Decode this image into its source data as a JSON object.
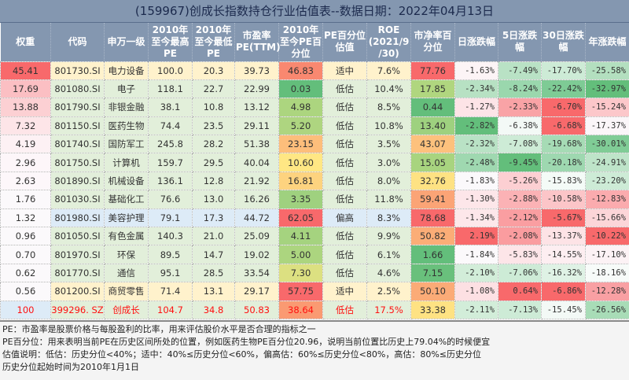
{
  "title": "(159967)创成长指数持仓行业估值表--数据日期：2022年04月13日",
  "headers": [
    "权重",
    "代码",
    "申万一级",
    "2010年\n至今最高\nPE",
    "2010年\n至今最低\nPE",
    "市盈率\nPE(TTM)",
    "2010年\n至今PE百\n分位",
    "PE百分位\n估值",
    "ROE\n(2021/9\n/30)",
    "市净率百\n分位",
    "日涨跌幅",
    "5日涨跌\n幅",
    "30日涨跌\n幅",
    "年涨跌幅"
  ],
  "category_colors": {
    "适中": "#fff2cc",
    "低估": "#e2efda",
    "偏高": "#ddebf7"
  },
  "rows": [
    {
      "weight": "45.41",
      "wc": "#f8696b",
      "code": "801730.SI",
      "name": "电力设备",
      "high": "100.0",
      "low": "20.3",
      "pe": "39.73",
      "pep": "46.83",
      "pepc": "#f98870",
      "val": "适中",
      "roe": "7.6%",
      "pb": "77.76",
      "pbc": "#f8696b",
      "d": "-1.63%",
      "dc": "#fcf4f6",
      "d5": "-7.49%",
      "d5c": "#b9e2c5",
      "d30": "-17.70%",
      "d30c": "#cdebd6",
      "y": "-25.58%",
      "yc": "#b3dfbf"
    },
    {
      "weight": "17.69",
      "wc": "#fbbfc3",
      "code": "801080.SI",
      "name": "电子",
      "high": "118.1",
      "low": "22.7",
      "pe": "22.99",
      "pep": "0.03",
      "pepc": "#63be7b",
      "val": "低估",
      "roe": "10.4%",
      "pb": "17.85",
      "pbc": "#b0d67f",
      "d": "-2.34%",
      "dc": "#b7e1c3",
      "d5": "-8.24%",
      "d5c": "#9ad7ad",
      "d30": "-22.42%",
      "d30c": "#7ecb95",
      "y": "-32.97%",
      "yc": "#63be7b"
    },
    {
      "weight": "13.88",
      "wc": "#fcd0d3",
      "code": "801790.SI",
      "name": "非银金融",
      "high": "38.1",
      "low": "10.8",
      "pe": "13.12",
      "pep": "4.98",
      "pepc": "#acd57f",
      "val": "低估",
      "roe": "8.5%",
      "pb": "0.44",
      "pbc": "#63be7b",
      "d": "-1.27%",
      "dc": "#fde4e7",
      "d5": "-2.33%",
      "d5c": "#f9a3a6",
      "d30": "-6.70%",
      "d30c": "#f8696b",
      "y": "-15.24%",
      "yc": "#fcc7ca"
    },
    {
      "weight": "7.32",
      "wc": "#fde5e8",
      "code": "801150.SI",
      "name": "医药生物",
      "high": "74.4",
      "low": "23.5",
      "pe": "29.11",
      "pep": "5.20",
      "pepc": "#aed580",
      "val": "低估",
      "roe": "10.8%",
      "pb": "13.40",
      "pbc": "#9ed17f",
      "d": "-2.82%",
      "dc": "#63be7b",
      "d5": "-6.38%",
      "d5c": "#f3f9f6",
      "d30": "-6.68%",
      "d30c": "#f8696b",
      "y": "-17.37%",
      "yc": "#fbf6f9"
    },
    {
      "weight": "4.19",
      "wc": "#fdf1f4",
      "code": "801740.SI",
      "name": "国防军工",
      "high": "245.8",
      "low": "28.2",
      "pe": "51.38",
      "pep": "23.15",
      "pepc": "#fdbe7b",
      "val": "低估",
      "roe": "3.5%",
      "pb": "43.07",
      "pbc": "#fdc17d",
      "d": "-2.32%",
      "dc": "#b9e2c5",
      "d5": "-7.08%",
      "d5c": "#cdebd6",
      "d30": "-19.68%",
      "d30c": "#a6dbb5",
      "y": "-30.01%",
      "yc": "#80cc96"
    },
    {
      "weight": "2.96",
      "wc": "#fdf6f9",
      "code": "801750.SI",
      "name": "计算机",
      "high": "159.7",
      "low": "29.5",
      "pe": "40.04",
      "pep": "10.60",
      "pepc": "#ffe784",
      "val": "低估",
      "roe": "3.0%",
      "pb": "15.05",
      "pbc": "#a8d47f",
      "d": "-2.48%",
      "dc": "#9fd8b0",
      "d5": "-9.45%",
      "d5c": "#63be7b",
      "d30": "-20.18%",
      "d30c": "#9ed8b0",
      "y": "-24.91%",
      "yc": "#bee4c9"
    },
    {
      "weight": "2.63",
      "wc": "#fdf7fa",
      "code": "801890.SI",
      "name": "机械设备",
      "high": "136.1",
      "low": "12.8",
      "pe": "21.92",
      "pep": "16.81",
      "pepc": "#fdd37f",
      "val": "低估",
      "roe": "8.0%",
      "pb": "32.76",
      "pbc": "#fee283",
      "d": "-1.83%",
      "dc": "#fbf9fb",
      "d5": "-5.26%",
      "d5c": "#fccfd2",
      "d30": "-15.83%",
      "d30c": "#f4fbf7",
      "y": "-23.20%",
      "yc": "#cdebd6"
    },
    {
      "weight": "1.76",
      "wc": "#fbf9fb",
      "code": "801030.SI",
      "name": "基础化工",
      "high": "76.6",
      "low": "13.0",
      "pe": "16.26",
      "pep": "3.35",
      "pepc": "#9fd17f",
      "val": "低估",
      "roe": "11.8%",
      "pb": "59.41",
      "pbc": "#fba476",
      "d": "-1.30%",
      "dc": "#fde6e9",
      "d5": "-2.88%",
      "d5c": "#fbb2b5",
      "d30": "-10.58%",
      "d30c": "#fcc5c8",
      "y": "-12.83%",
      "yc": "#fbabae"
    },
    {
      "weight": "1.32",
      "wc": "#fbf9fb",
      "code": "801980.SI",
      "name": "美容护理",
      "high": "79.1",
      "low": "17.3",
      "pe": "44.72",
      "pep": "62.05",
      "pepc": "#f8696b",
      "val": "偏高",
      "roe": "8.3%",
      "pb": "78.68",
      "pbc": "#f8696b",
      "d": "-1.34%",
      "dc": "#fde7ea",
      "d5": "-2.12%",
      "d5c": "#fa9ea1",
      "d30": "-5.67%",
      "d30c": "#f8696b",
      "y": "-15.66%",
      "yc": "#fcd5d8"
    },
    {
      "weight": "0.96",
      "wc": "#fbf9fb",
      "code": "801050.SI",
      "name": "有色金属",
      "high": "140.3",
      "low": "21.0",
      "pe": "25.09",
      "pep": "4.11",
      "pepc": "#a5d37f",
      "val": "低估",
      "roe": "9.9%",
      "pb": "50.82",
      "pbc": "#fbad77",
      "d": "2.19%",
      "dc": "#f8696b",
      "d5": "-2.08%",
      "d5c": "#fa9c9f",
      "d30": "-13.37%",
      "d30c": "#fde3e6",
      "y": "-10.22%",
      "yc": "#f8696b"
    },
    {
      "weight": "0.70",
      "wc": "#fbf9fb",
      "code": "801970.SI",
      "name": "环保",
      "high": "89.5",
      "low": "14.7",
      "pe": "19.02",
      "pep": "5.00",
      "pepc": "#acd57f",
      "val": "低估",
      "roe": "6.1%",
      "pb": "1.66",
      "pbc": "#63be7b",
      "d": "-1.84%",
      "dc": "#fbf9fb",
      "d5": "-5.83%",
      "d5c": "#fde5e8",
      "d30": "-14.55%",
      "d30c": "#fdeef1",
      "y": "-17.10%",
      "yc": "#fcf2f5"
    },
    {
      "weight": "0.62",
      "wc": "#fbf9fb",
      "code": "801770.SI",
      "name": "通信",
      "high": "95.1",
      "low": "28.5",
      "pe": "33.54",
      "pep": "7.30",
      "pepc": "#dce081",
      "val": "低估",
      "roe": "4.6%",
      "pb": "7.15",
      "pbc": "#69c07c",
      "d": "-2.10%",
      "dc": "#d2edd9",
      "d5": "-7.06%",
      "d5c": "#cdebd6",
      "d30": "-16.32%",
      "d30c": "#dff2e5",
      "y": "-18.16%",
      "yc": "#f7fbf9"
    },
    {
      "weight": "0.56",
      "wc": "#fbf9fb",
      "code": "801200.SI",
      "name": "商贸零售",
      "high": "71.4",
      "low": "13.1",
      "pe": "29.17",
      "pep": "57.75",
      "pepc": "#f8696b",
      "val": "适中",
      "roe": "2.5%",
      "pb": "50.10",
      "pbc": "#fbab77",
      "d": "-1.08%",
      "dc": "#fde0e3",
      "d5": "0.64%",
      "d5c": "#f8696b",
      "d30": "-6.86%",
      "d30c": "#f8696b",
      "y": "-12.28%",
      "yc": "#f9a0a3"
    },
    {
      "weight": "100",
      "wc": "#ddebf7",
      "code": "399296. SZ",
      "name": "创成长",
      "high": "104.7",
      "low": "34.8",
      "pe": "50.83",
      "pep": "38.64",
      "pepc": "#fa9a72",
      "val": "低估",
      "roe": "17.5%",
      "pb": "33.38",
      "pbc": "#fee283",
      "d": "-2.11%",
      "dc": "#d2edd9",
      "d5": "-7.13%",
      "d5c": "#cdebd6",
      "d30": "-15.45%",
      "d30c": "#f3f9f6",
      "y": "-26.56%",
      "yc": "#a8dcb7",
      "total": true
    }
  ],
  "notes": [
    "PE：市盈率是股票价格与每股盈利的比率，用来评估股价水平是否合理的指标之一",
    "PE百分位：用来表明当前PE在历史区间所处的位置，例如医药生物PE百分位20.96，说明当前位置比历史上79.04%的时候便宜",
    "估值说明：低估：历史分位<40%；适中：40%≤历史分位<60%，偏高估：60%≤历史分位<80%，高估：80%≤历史分位",
    "历史分位起始时间为2010年1月1日"
  ]
}
